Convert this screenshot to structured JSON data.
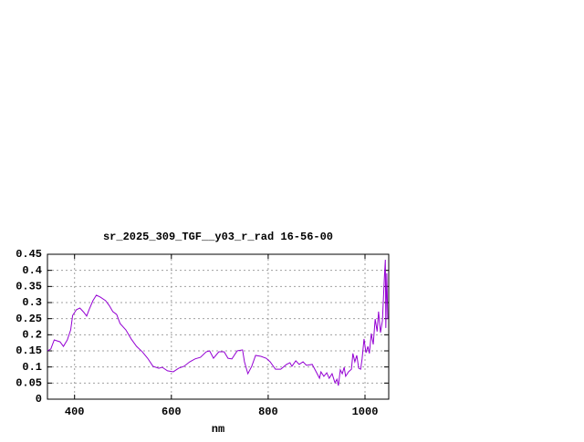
{
  "chart_data": {
    "type": "line",
    "title": "sr_2025_309_TGF__y03_r_rad 16-56-00",
    "x_label": "nm",
    "color": "#9400d3",
    "grid": true,
    "xlim": [
      344,
      1049
    ],
    "ylim": [
      0,
      0.45
    ],
    "xticks": [
      400,
      600,
      800,
      1000
    ],
    "yticks": [
      0,
      0.05,
      0.1,
      0.15,
      0.2,
      0.25,
      0.3,
      0.35,
      0.4,
      0.45
    ],
    "x": [
      344,
      351,
      358,
      370,
      377,
      385,
      392,
      396,
      404,
      411,
      419,
      425,
      430,
      438,
      445,
      453,
      464,
      472,
      479,
      487,
      494,
      506,
      517,
      528,
      540,
      551,
      562,
      574,
      581,
      592,
      604,
      615,
      626,
      638,
      649,
      660,
      672,
      679,
      687,
      698,
      709,
      717,
      725,
      736,
      747,
      751,
      758,
      766,
      774,
      785,
      796,
      804,
      815,
      826,
      838,
      845,
      849,
      857,
      864,
      872,
      879,
      891,
      898,
      906,
      909,
      915,
      921,
      926,
      932,
      938,
      942,
      945,
      949,
      953,
      957,
      960,
      966,
      972,
      975,
      979,
      983,
      987,
      991,
      994,
      998,
      1002,
      1006,
      1009,
      1013,
      1017,
      1021,
      1025,
      1028,
      1032,
      1036,
      1040,
      1042,
      1043,
      1045,
      1047
    ],
    "values": [
      0.15,
      0.156,
      0.184,
      0.178,
      0.164,
      0.184,
      0.215,
      0.26,
      0.278,
      0.283,
      0.27,
      0.258,
      0.278,
      0.306,
      0.323,
      0.317,
      0.306,
      0.29,
      0.272,
      0.263,
      0.235,
      0.215,
      0.187,
      0.164,
      0.147,
      0.127,
      0.102,
      0.096,
      0.099,
      0.088,
      0.085,
      0.096,
      0.102,
      0.116,
      0.125,
      0.13,
      0.147,
      0.15,
      0.127,
      0.147,
      0.147,
      0.127,
      0.125,
      0.15,
      0.153,
      0.116,
      0.079,
      0.102,
      0.136,
      0.133,
      0.127,
      0.116,
      0.093,
      0.093,
      0.108,
      0.113,
      0.102,
      0.119,
      0.108,
      0.116,
      0.105,
      0.108,
      0.088,
      0.065,
      0.085,
      0.071,
      0.082,
      0.065,
      0.079,
      0.051,
      0.062,
      0.042,
      0.091,
      0.079,
      0.099,
      0.071,
      0.085,
      0.093,
      0.142,
      0.116,
      0.136,
      0.096,
      0.093,
      0.125,
      0.187,
      0.144,
      0.164,
      0.142,
      0.204,
      0.17,
      0.249,
      0.21,
      0.272,
      0.207,
      0.244,
      0.377,
      0.433,
      0.221,
      0.391,
      0.249
    ]
  }
}
